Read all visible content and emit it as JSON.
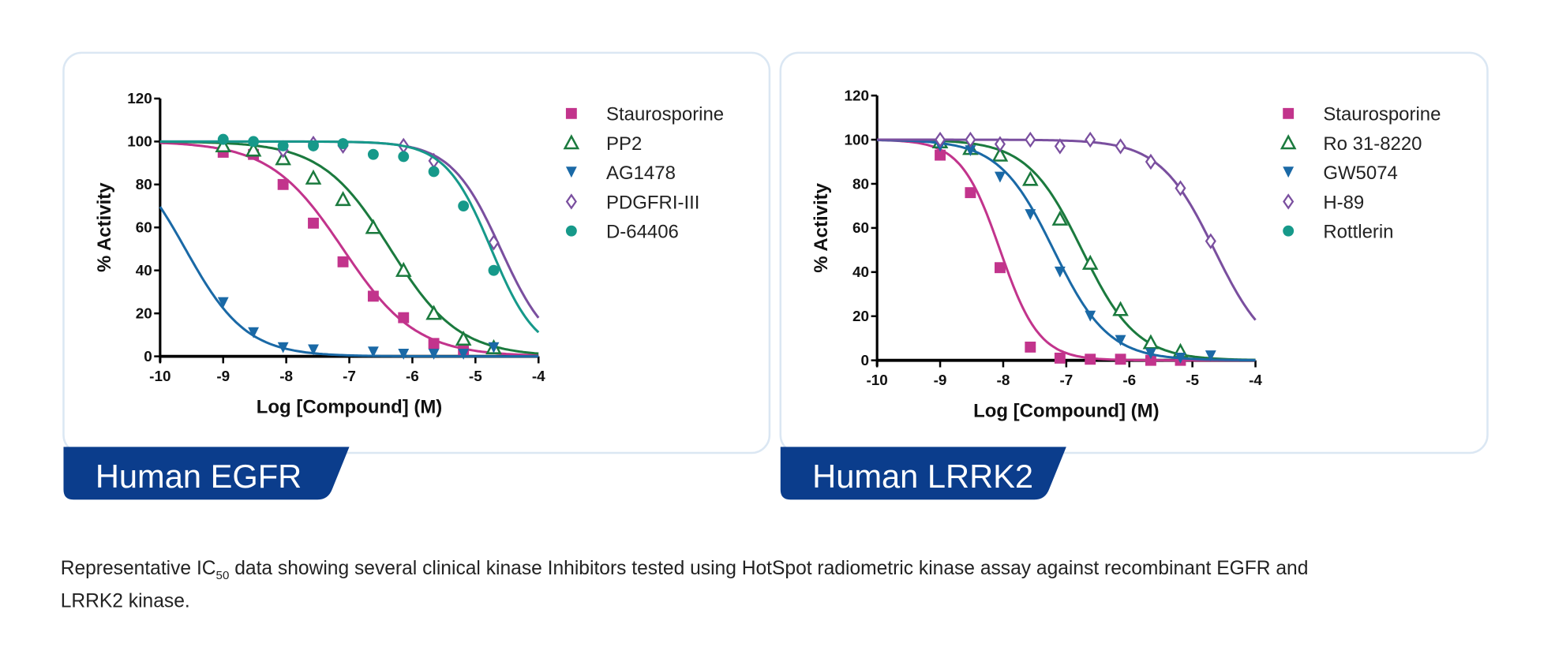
{
  "caption": {
    "prefix": "Representative IC",
    "subscript": "50",
    "line1_rest": " data showing several clinical kinase Inhibitors tested using HotSpot radiometric kinase assay against recombinant EGFR and",
    "line2": "LRRK2 kinase."
  },
  "colors": {
    "card_border": "#dbe7f3",
    "banner": "#0b3d8c"
  },
  "chart_data": [
    {
      "type": "scatter",
      "title": "Human EGFR",
      "xlabel": "Log [Compound] (M)",
      "ylabel": "% Activity",
      "xlim": [
        -10,
        -4
      ],
      "ylim": [
        0,
        120
      ],
      "xticks": [
        -10,
        -9,
        -8,
        -7,
        -6,
        -5,
        -4
      ],
      "yticks": [
        0,
        20,
        40,
        60,
        80,
        100,
        120
      ],
      "grid": false,
      "legend": "right",
      "series": [
        {
          "name": "Staurosporine",
          "marker": "square",
          "color": "#c2348c",
          "x": [
            -9,
            -8.52,
            -8.05,
            -7.57,
            -7.1,
            -6.62,
            -6.14,
            -5.66,
            -5.19
          ],
          "y": [
            95,
            94,
            80,
            62,
            44,
            28,
            18,
            6,
            3
          ],
          "fit": {
            "top": 100,
            "bottom": 0,
            "logIC50": -7.1,
            "hill": 0.75
          }
        },
        {
          "name": "PP2",
          "marker": "triangle-open",
          "color": "#1b7a3e",
          "x": [
            -9,
            -8.52,
            -8.05,
            -7.57,
            -7.1,
            -6.62,
            -6.14,
            -5.66,
            -5.19,
            -4.71
          ],
          "y": [
            98,
            96,
            92,
            83,
            73,
            60,
            40,
            20,
            8,
            4
          ],
          "fit": {
            "top": 100,
            "bottom": 0,
            "logIC50": -6.35,
            "hill": 0.8
          }
        },
        {
          "name": "AG1478",
          "marker": "triangle-down",
          "color": "#1a69a6",
          "x": [
            -9,
            -8.52,
            -8.05,
            -7.57,
            -6.62,
            -6.14,
            -5.66,
            -5.19,
            -4.71
          ],
          "y": [
            25,
            11,
            4,
            3,
            2,
            1,
            1,
            1,
            4
          ],
          "fit": {
            "top": 100,
            "bottom": 0,
            "logIC50": -9.6,
            "hill": 0.9
          }
        },
        {
          "name": "PDGFRI-III",
          "marker": "diamond-open",
          "color": "#7a4f9f",
          "x": [
            -8.05,
            -7.57,
            -7.1,
            -6.14,
            -5.66,
            -4.71
          ],
          "y": [
            96,
            99,
            98,
            98,
            91,
            53
          ],
          "fit": {
            "top": 100,
            "bottom": 0,
            "logIC50": -4.6,
            "hill": 1.1
          }
        },
        {
          "name": "D-64406",
          "marker": "circle",
          "color": "#16998a",
          "x": [
            -9,
            -8.52,
            -8.05,
            -7.57,
            -7.1,
            -6.62,
            -6.14,
            -5.66,
            -5.19,
            -4.71
          ],
          "y": [
            101,
            100,
            98,
            98,
            99,
            94,
            93,
            86,
            70,
            40
          ],
          "fit": {
            "top": 100,
            "bottom": 0,
            "logIC50": -4.75,
            "hill": 1.2
          }
        }
      ]
    },
    {
      "type": "scatter",
      "title": "Human LRRK2",
      "xlabel": "Log [Compound] (M)",
      "ylabel": "% Activity",
      "xlim": [
        -10,
        -4
      ],
      "ylim": [
        0,
        120
      ],
      "xticks": [
        -10,
        -9,
        -8,
        -7,
        -6,
        -5,
        -4
      ],
      "yticks": [
        0,
        20,
        40,
        60,
        80,
        100,
        120
      ],
      "grid": false,
      "legend": "right",
      "series": [
        {
          "name": "Staurosporine",
          "marker": "square",
          "color": "#c2348c",
          "x": [
            -9,
            -8.52,
            -8.05,
            -7.57,
            -7.1,
            -6.62,
            -6.14,
            -5.66,
            -5.19
          ],
          "y": [
            93,
            76,
            42,
            6,
            1,
            0.5,
            0.5,
            0,
            0
          ],
          "fit": {
            "top": 100,
            "bottom": 0,
            "logIC50": -8.05,
            "hill": 1.4
          }
        },
        {
          "name": "Ro 31-8220",
          "marker": "triangle-open",
          "color": "#1b7a3e",
          "x": [
            -9,
            -8.52,
            -8.05,
            -7.57,
            -7.1,
            -6.62,
            -6.14,
            -5.66,
            -5.19
          ],
          "y": [
            99,
            96,
            93,
            82,
            64,
            44,
            23,
            8,
            4
          ],
          "fit": {
            "top": 100,
            "bottom": 0,
            "logIC50": -6.75,
            "hill": 1.0
          }
        },
        {
          "name": "GW5074",
          "marker": "triangle-down",
          "color": "#1a69a6",
          "x": [
            -9,
            -8.52,
            -8.05,
            -7.57,
            -7.1,
            -6.62,
            -6.14,
            -5.66,
            -5.19,
            -4.71
          ],
          "y": [
            97,
            95,
            83,
            66,
            40,
            20,
            9,
            3,
            1,
            2
          ],
          "fit": {
            "top": 100,
            "bottom": 0,
            "logIC50": -7.2,
            "hill": 1.0
          }
        },
        {
          "name": "H-89",
          "marker": "diamond-open",
          "color": "#7a4f9f",
          "x": [
            -9,
            -8.52,
            -8.05,
            -7.57,
            -7.1,
            -6.62,
            -6.14,
            -5.66,
            -5.19,
            -4.71
          ],
          "y": [
            100,
            100,
            98,
            100,
            97,
            100,
            97,
            90,
            78,
            54
          ],
          "fit": {
            "top": 100,
            "bottom": 0,
            "logIC50": -4.65,
            "hill": 1.0
          }
        },
        {
          "name": "Rottlerin",
          "marker": "circle",
          "color": "#16998a",
          "x": [],
          "y": []
        }
      ]
    }
  ]
}
